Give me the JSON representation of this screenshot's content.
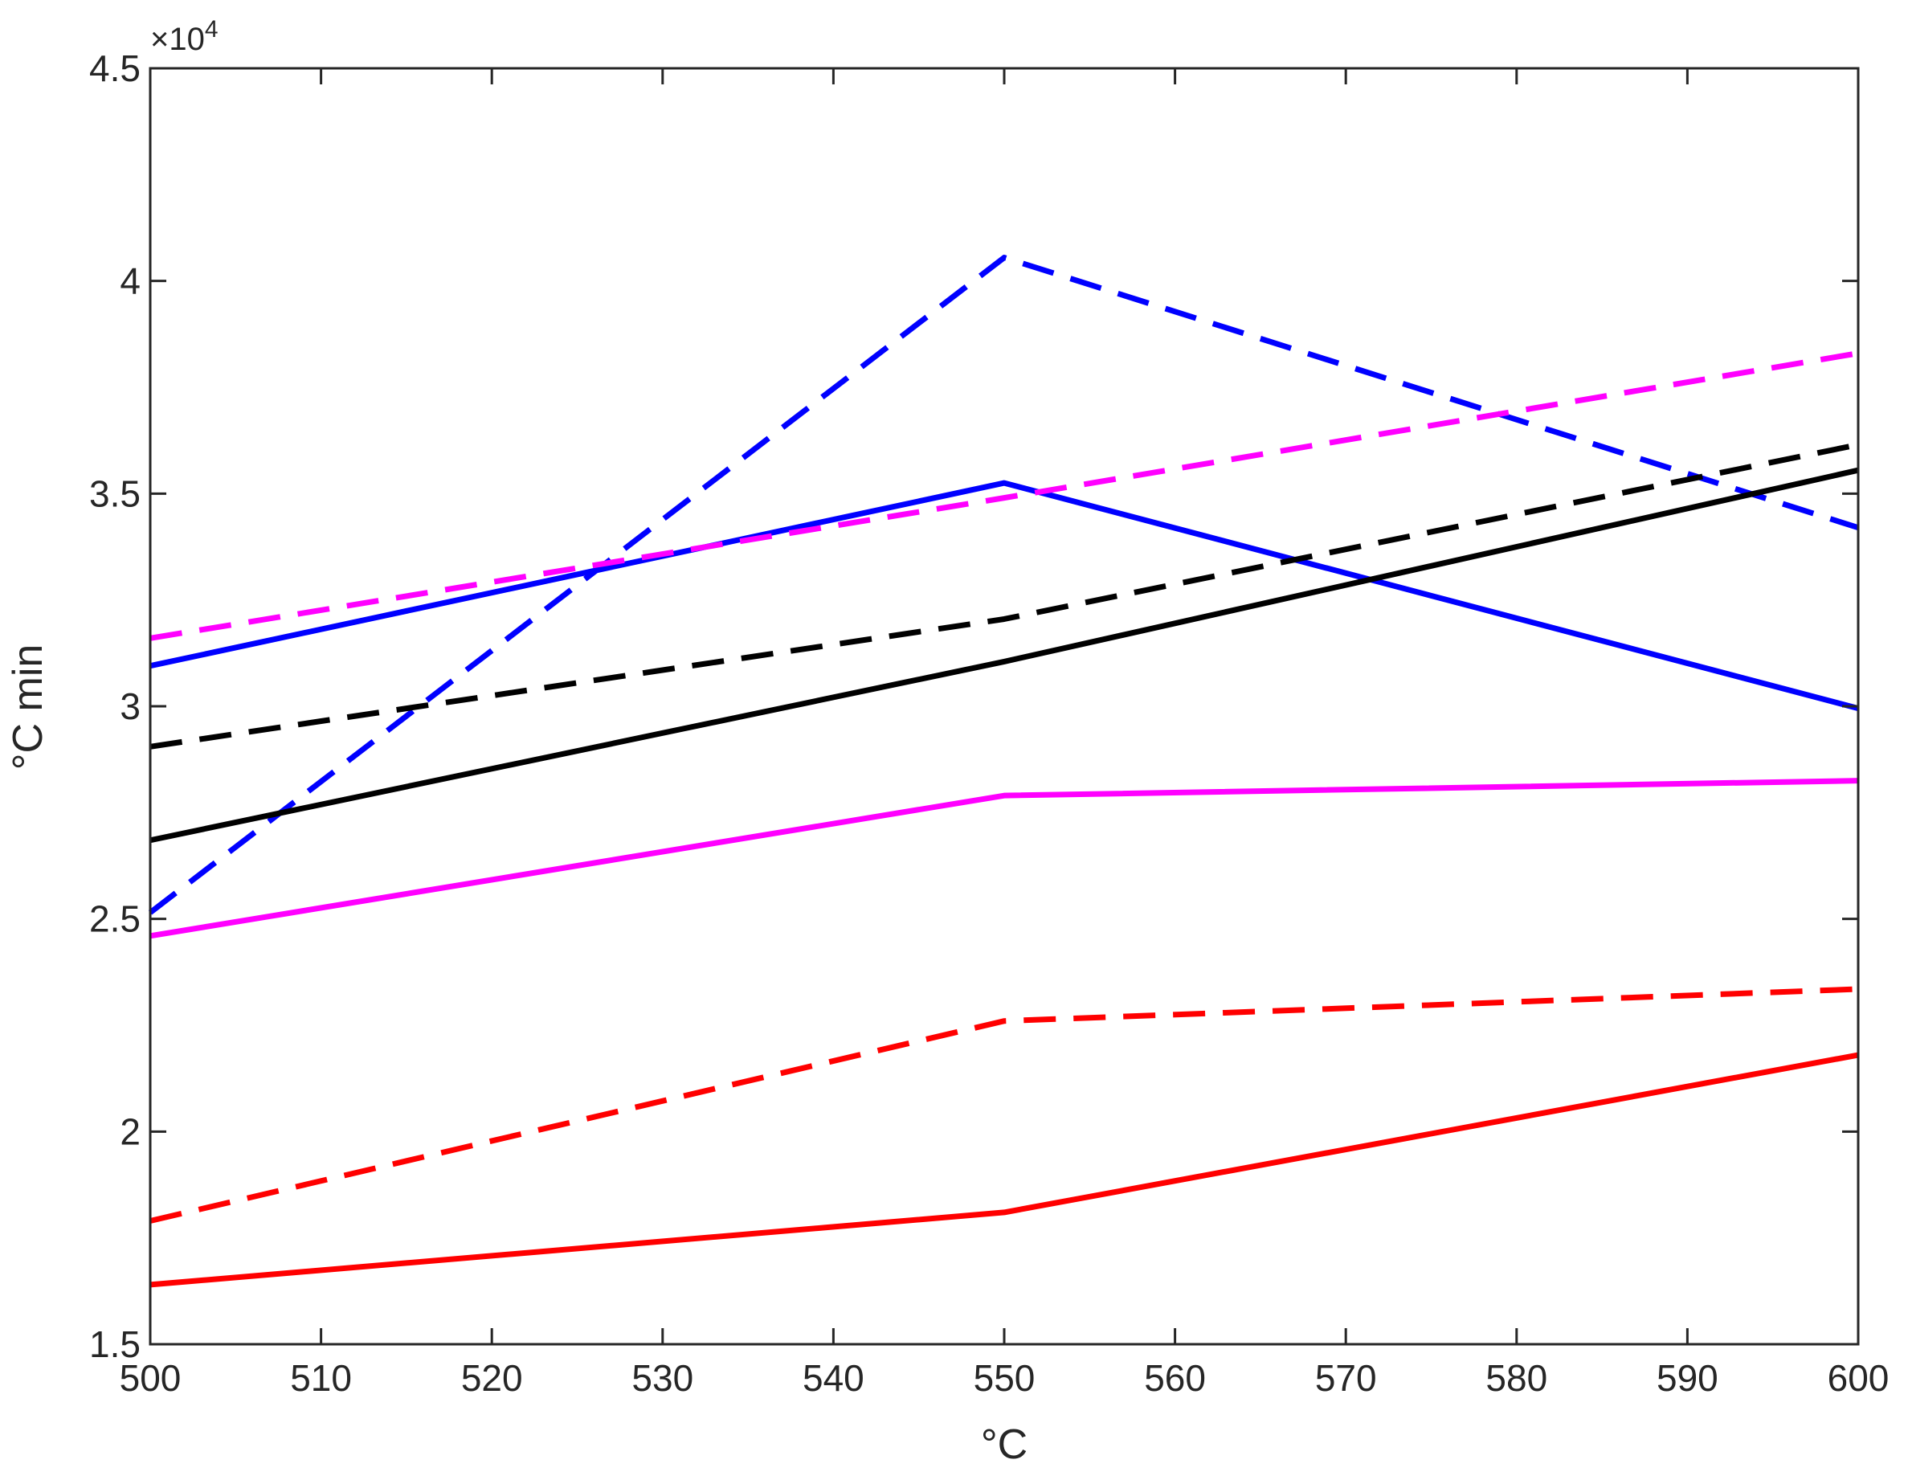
{
  "chart_data": {
    "type": "line",
    "title": "",
    "xlabel": "°C",
    "ylabel": "°C min",
    "xlim": [
      500,
      600
    ],
    "ylim": [
      15000,
      45000
    ],
    "x_ticks": [
      500,
      510,
      520,
      530,
      540,
      550,
      560,
      570,
      580,
      590,
      600
    ],
    "y_ticks": [
      15000,
      20000,
      25000,
      30000,
      35000,
      40000,
      45000
    ],
    "y_tick_labels": [
      "1.5",
      "2",
      "2.5",
      "3",
      "3.5",
      "4",
      "4.5"
    ],
    "y_exponent": {
      "base": "×10",
      "power": "4"
    },
    "grid": false,
    "legend": "none",
    "x": [
      500,
      550,
      600
    ],
    "series": [
      {
        "values": [
          30950,
          35250,
          29950
        ],
        "color": "#0000ff",
        "style": "solid"
      },
      {
        "values": [
          25150,
          40550,
          34200
        ],
        "color": "#0000ff",
        "style": "dashed"
      },
      {
        "values": [
          31600,
          34900,
          38300
        ],
        "color": "#ff00ff",
        "style": "dashed"
      },
      {
        "values": [
          24600,
          27900,
          28250
        ],
        "color": "#ff00ff",
        "style": "solid"
      },
      {
        "values": [
          29050,
          32050,
          36150
        ],
        "color": "#000000",
        "style": "dashed"
      },
      {
        "values": [
          26850,
          31050,
          35550
        ],
        "color": "#000000",
        "style": "solid"
      },
      {
        "values": [
          17900,
          22600,
          23350
        ],
        "color": "#ff0000",
        "style": "dashed"
      },
      {
        "values": [
          16400,
          18100,
          21800
        ],
        "color": "#ff0000",
        "style": "solid"
      }
    ]
  }
}
